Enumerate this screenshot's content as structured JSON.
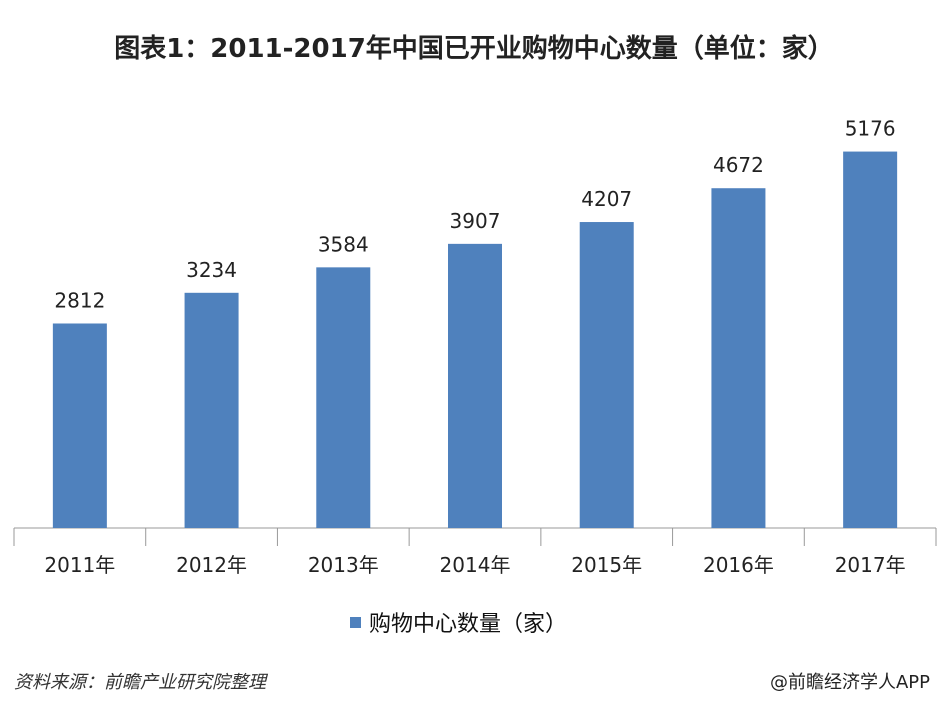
{
  "title": "图表1：2011-2017年中国已开业购物中心数量（单位：家）",
  "footer": {
    "source": "资料来源：前瞻产业研究院整理",
    "brand": "@前瞻经济学人APP"
  },
  "colors": {
    "bar": "#4f81bd",
    "axis": "#999999"
  },
  "chart_data": {
    "type": "bar",
    "title": "图表1：2011-2017年中国已开业购物中心数量（单位：家）",
    "categories": [
      "2011年",
      "2012年",
      "2013年",
      "2014年",
      "2015年",
      "2016年",
      "2017年"
    ],
    "series": [
      {
        "name": "购物中心数量（家）",
        "values": [
          2812,
          3234,
          3584,
          3907,
          4207,
          4672,
          5176
        ]
      }
    ],
    "ylim": [
      0,
      5500
    ],
    "grid": false,
    "legend": "bottom-center"
  }
}
